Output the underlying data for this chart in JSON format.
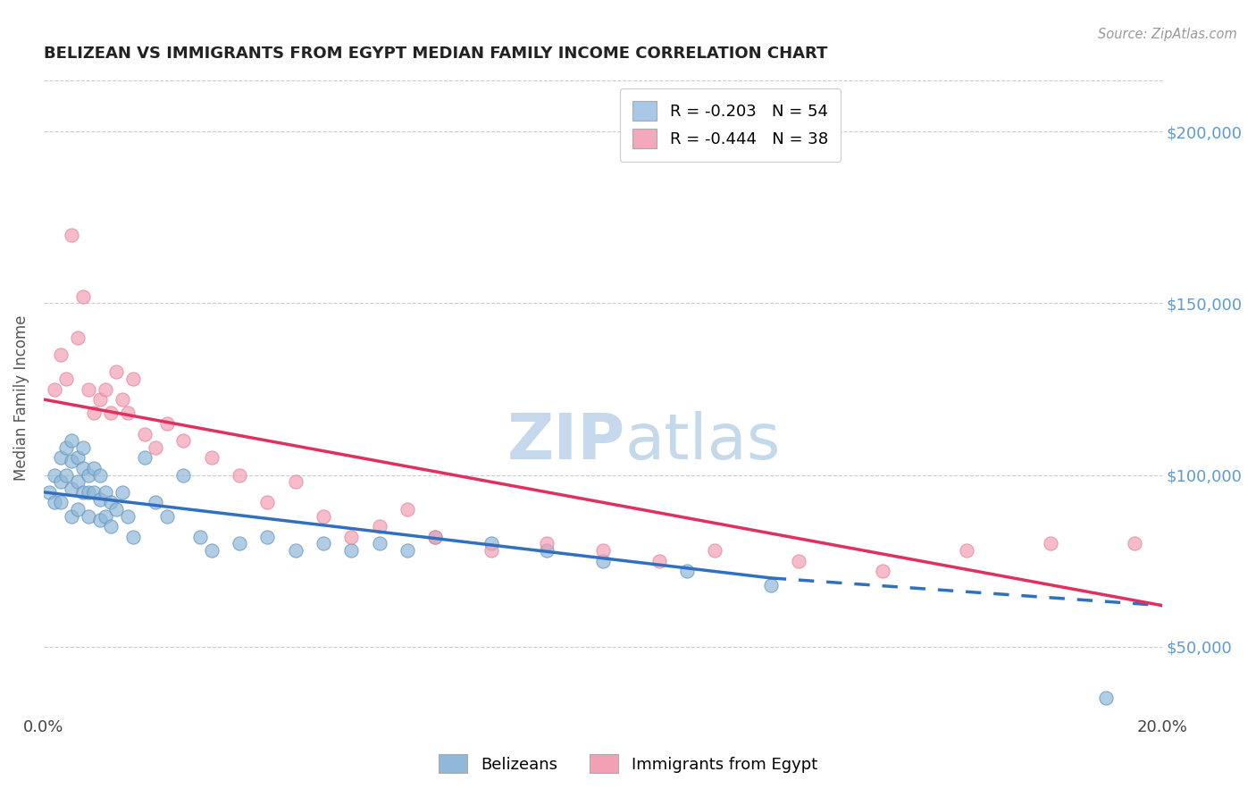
{
  "title": "BELIZEAN VS IMMIGRANTS FROM EGYPT MEDIAN FAMILY INCOME CORRELATION CHART",
  "source": "Source: ZipAtlas.com",
  "ylabel": "Median Family Income",
  "xlim": [
    0.0,
    0.2
  ],
  "ylim": [
    30000,
    215000
  ],
  "xtick_positions": [
    0.0,
    0.05,
    0.1,
    0.15,
    0.2
  ],
  "xtick_labels": [
    "0.0%",
    "",
    "",
    "",
    "20.0%"
  ],
  "ytick_values": [
    50000,
    100000,
    150000,
    200000
  ],
  "ytick_labels_right": [
    "$50,000",
    "$100,000",
    "$150,000",
    "$200,000"
  ],
  "legend_entries": [
    {
      "label": "R = -0.203   N = 54",
      "color": "#a8c8e8"
    },
    {
      "label": "R = -0.444   N = 38",
      "color": "#f4a8bc"
    }
  ],
  "legend_labels_bottom": [
    "Belizeans",
    "Immigrants from Egypt"
  ],
  "belizean_color": "#90b8d8",
  "egypt_color": "#f4a0b4",
  "trendline_belizean_color": "#3070c0",
  "trendline_egypt_color": "#e03060",
  "grid_color": "#cccccc",
  "background_color": "#ffffff",
  "title_color": "#222222",
  "right_axis_label_color": "#5b9bd5",
  "watermark_color": "#c5d8ec",
  "belizean_R": -0.203,
  "belizean_N": 54,
  "egypt_R": -0.444,
  "egypt_N": 38,
  "trendline_belizean_x0": 0.0,
  "trendline_belizean_y0": 95000,
  "trendline_belizean_x1": 0.13,
  "trendline_belizean_y1": 70000,
  "trendline_belizean_xdash1": 0.13,
  "trendline_belizean_ydash1": 70000,
  "trendline_belizean_xdash2": 0.2,
  "trendline_belizean_ydash2": 62000,
  "trendline_egypt_x0": 0.0,
  "trendline_egypt_y0": 122000,
  "trendline_egypt_x1": 0.2,
  "trendline_egypt_y1": 62000,
  "belizean_x": [
    0.001,
    0.002,
    0.002,
    0.003,
    0.003,
    0.003,
    0.004,
    0.004,
    0.005,
    0.005,
    0.005,
    0.005,
    0.006,
    0.006,
    0.006,
    0.007,
    0.007,
    0.007,
    0.008,
    0.008,
    0.008,
    0.009,
    0.009,
    0.01,
    0.01,
    0.01,
    0.011,
    0.011,
    0.012,
    0.012,
    0.013,
    0.014,
    0.015,
    0.016,
    0.018,
    0.02,
    0.022,
    0.025,
    0.028,
    0.03,
    0.035,
    0.04,
    0.045,
    0.05,
    0.055,
    0.06,
    0.065,
    0.07,
    0.08,
    0.09,
    0.1,
    0.115,
    0.13,
    0.19
  ],
  "belizean_y": [
    95000,
    100000,
    92000,
    105000,
    98000,
    92000,
    108000,
    100000,
    110000,
    104000,
    96000,
    88000,
    105000,
    98000,
    90000,
    108000,
    102000,
    95000,
    100000,
    95000,
    88000,
    102000,
    95000,
    100000,
    93000,
    87000,
    95000,
    88000,
    92000,
    85000,
    90000,
    95000,
    88000,
    82000,
    105000,
    92000,
    88000,
    100000,
    82000,
    78000,
    80000,
    82000,
    78000,
    80000,
    78000,
    80000,
    78000,
    82000,
    80000,
    78000,
    75000,
    72000,
    68000,
    35000
  ],
  "egypt_x": [
    0.002,
    0.003,
    0.004,
    0.005,
    0.006,
    0.007,
    0.008,
    0.009,
    0.01,
    0.011,
    0.012,
    0.013,
    0.014,
    0.015,
    0.016,
    0.018,
    0.02,
    0.022,
    0.025,
    0.03,
    0.035,
    0.04,
    0.045,
    0.05,
    0.055,
    0.06,
    0.065,
    0.07,
    0.08,
    0.09,
    0.1,
    0.11,
    0.12,
    0.135,
    0.15,
    0.165,
    0.18,
    0.195
  ],
  "egypt_y": [
    125000,
    135000,
    128000,
    170000,
    140000,
    152000,
    125000,
    118000,
    122000,
    125000,
    118000,
    130000,
    122000,
    118000,
    128000,
    112000,
    108000,
    115000,
    110000,
    105000,
    100000,
    92000,
    98000,
    88000,
    82000,
    85000,
    90000,
    82000,
    78000,
    80000,
    78000,
    75000,
    78000,
    75000,
    72000,
    78000,
    80000,
    80000
  ]
}
